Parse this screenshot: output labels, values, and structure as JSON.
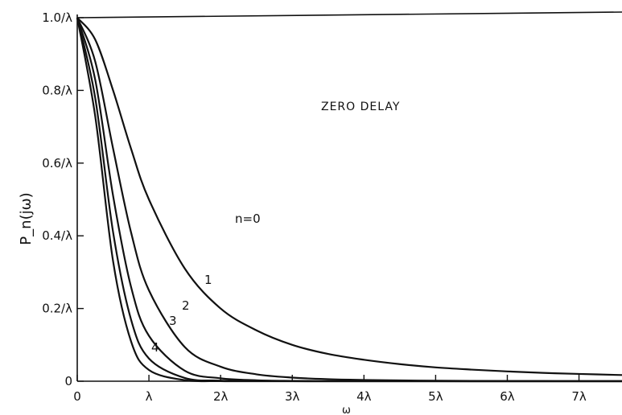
{
  "chart_data": {
    "type": "line",
    "title": "ZERO DELAY",
    "xlabel": "ω",
    "ylabel": "P_n(jω)",
    "xlim": [
      0,
      7.6
    ],
    "ylim": [
      0,
      1.0
    ],
    "x_ticks": [
      {
        "value": 0,
        "label": "0"
      },
      {
        "value": 1,
        "label": "λ"
      },
      {
        "value": 2,
        "label": "2λ"
      },
      {
        "value": 3,
        "label": "3λ"
      },
      {
        "value": 4,
        "label": "4λ"
      },
      {
        "value": 5,
        "label": "5λ"
      },
      {
        "value": 6,
        "label": "6λ"
      },
      {
        "value": 7,
        "label": "7λ"
      }
    ],
    "y_ticks": [
      {
        "value": 0,
        "label": "0"
      },
      {
        "value": 0.2,
        "label": "0.2/λ"
      },
      {
        "value": 0.4,
        "label": "0.4/λ"
      },
      {
        "value": 0.6,
        "label": "0.6/λ"
      },
      {
        "value": 0.8,
        "label": "0.8/λ"
      },
      {
        "value": 1.0,
        "label": "1.0/λ"
      }
    ],
    "grid": false,
    "series": [
      {
        "name": "n=0",
        "x": [
          0,
          0.25,
          0.5,
          0.75,
          1,
          1.5,
          2,
          2.5,
          3,
          3.5,
          4,
          4.5,
          5,
          5.5,
          6,
          6.5,
          7,
          7.6
        ],
        "values": [
          1.0,
          0.94,
          0.8,
          0.64,
          0.5,
          0.31,
          0.2,
          0.14,
          0.1,
          0.075,
          0.059,
          0.047,
          0.038,
          0.032,
          0.027,
          0.023,
          0.02,
          0.017
        ]
      },
      {
        "name": "1",
        "x": [
          0,
          0.25,
          0.5,
          0.75,
          1,
          1.5,
          2,
          2.5,
          3,
          3.5,
          4,
          4.5,
          5,
          5.5,
          6,
          6.5,
          7,
          7.6
        ],
        "values": [
          1.0,
          0.88,
          0.64,
          0.41,
          0.25,
          0.094,
          0.04,
          0.019,
          0.01,
          0.0057,
          0.0035,
          0.0022,
          0.0015,
          0.001,
          0.0007,
          0.0005,
          0.0004,
          0.0003
        ]
      },
      {
        "name": "2",
        "x": [
          0,
          0.25,
          0.5,
          0.75,
          1,
          1.5,
          2,
          2.5,
          3,
          3.5,
          4,
          4.5,
          5,
          5.5,
          6,
          6.5,
          7,
          7.6
        ],
        "values": [
          1.0,
          0.83,
          0.51,
          0.26,
          0.125,
          0.029,
          0.008,
          0.0026,
          0.001,
          0.0004,
          0.0002,
          0.0001,
          0.0001,
          0,
          0,
          0,
          0,
          0
        ]
      },
      {
        "name": "3",
        "x": [
          0,
          0.25,
          0.5,
          0.75,
          1,
          1.5,
          2,
          2.5,
          3,
          3.5,
          4,
          4.5,
          5,
          5.5,
          6,
          6.5,
          7,
          7.6
        ],
        "values": [
          1.0,
          0.78,
          0.41,
          0.17,
          0.0625,
          0.009,
          0.0016,
          0.0004,
          0.0001,
          0,
          0,
          0,
          0,
          0,
          0,
          0,
          0,
          0
        ]
      },
      {
        "name": "4",
        "x": [
          0,
          0.25,
          0.5,
          0.75,
          1,
          1.5,
          2,
          2.5,
          3,
          3.5,
          4,
          4.5,
          5,
          5.5,
          6,
          6.5,
          7,
          7.6
        ],
        "values": [
          1.0,
          0.73,
          0.33,
          0.11,
          0.031,
          0.003,
          0.0003,
          0,
          0,
          0,
          0,
          0,
          0,
          0,
          0,
          0,
          0,
          0
        ]
      }
    ],
    "annotations": [
      "n=0",
      "1",
      "2",
      "3",
      "4"
    ]
  }
}
